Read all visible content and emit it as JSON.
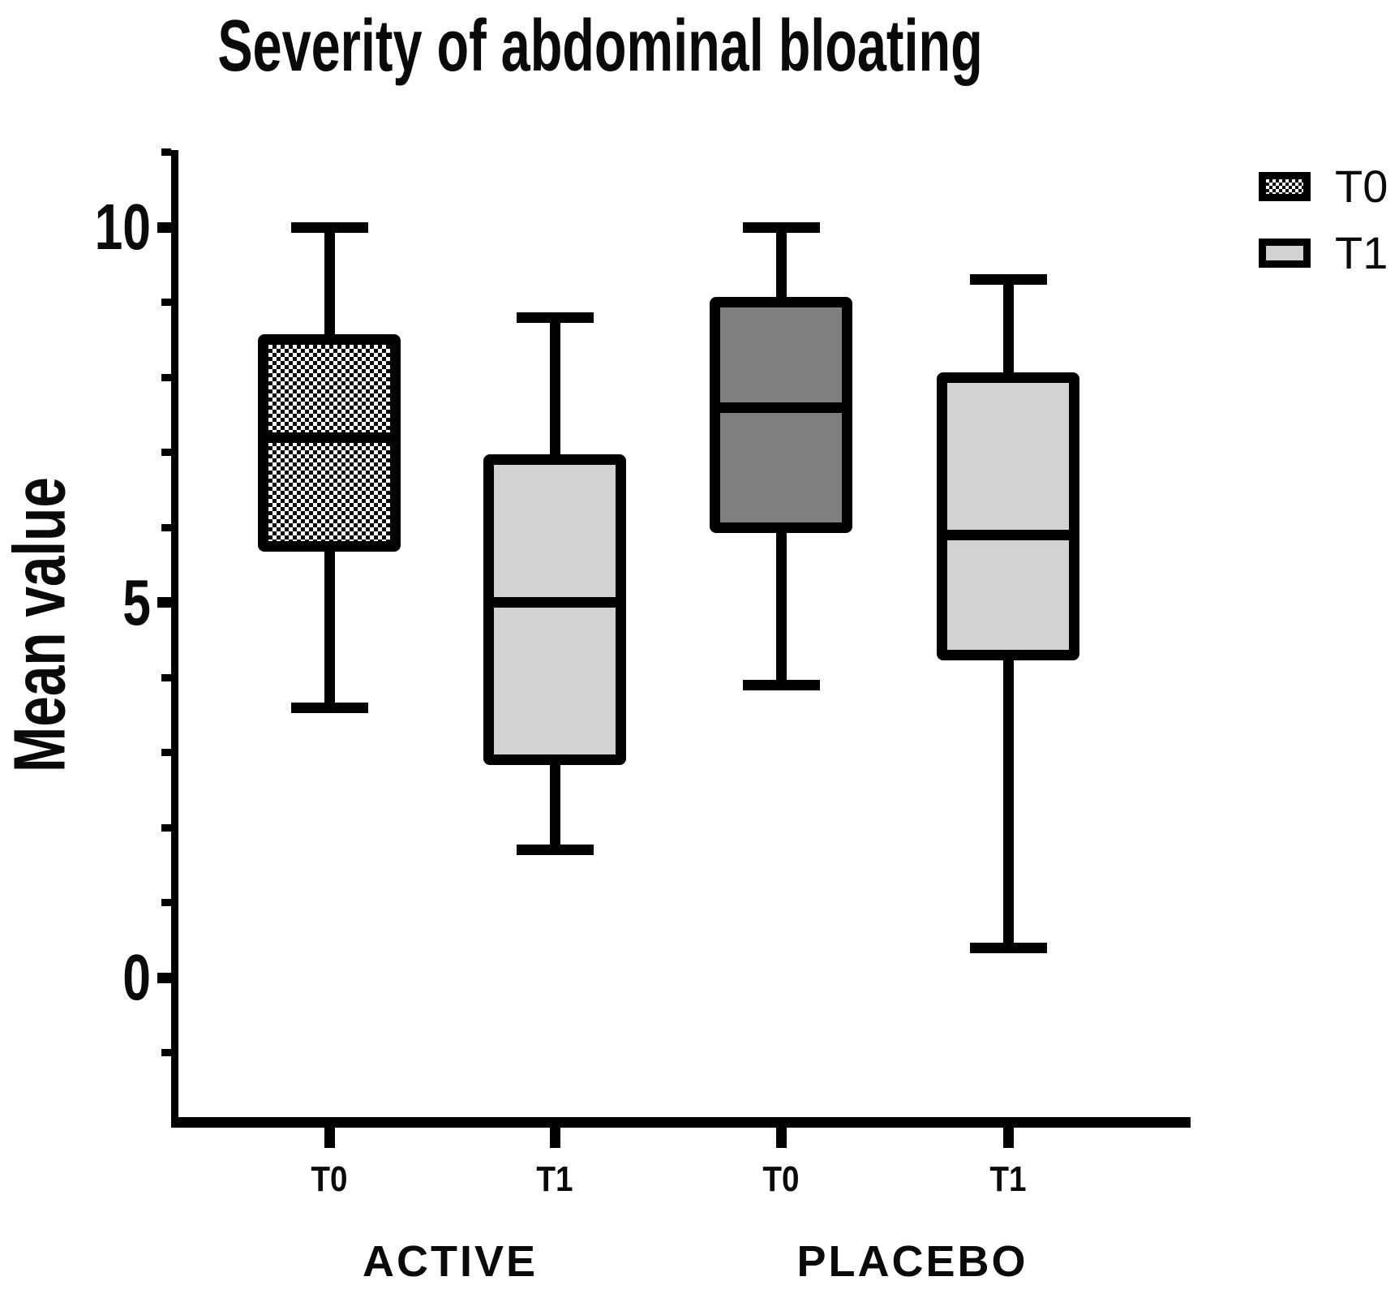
{
  "title": "Severity of abdominal bloating",
  "y_axis": {
    "label": "Mean value",
    "major_ticks": [
      {
        "value": 10,
        "label": "10"
      },
      {
        "value": 5,
        "label": "5"
      },
      {
        "value": 0,
        "label": "0"
      }
    ],
    "minor_tick_values": [
      11,
      9,
      8,
      7,
      6,
      4,
      3,
      2,
      1,
      -1
    ]
  },
  "x_axis": {
    "tick_labels": [
      "T0",
      "T1",
      "T0",
      "T1"
    ],
    "group_labels": [
      "ACTIVE",
      "PLACEBO"
    ]
  },
  "legend": {
    "items": [
      {
        "label": "T0",
        "fill": "crosshatch"
      },
      {
        "label": "T1",
        "fill": "lightgray"
      }
    ]
  },
  "colors": {
    "lightgray": "#d2d2d2",
    "darkgray": "#7f7f7f",
    "line": "#000000",
    "background": "#ffffff"
  },
  "chart_data": {
    "type": "box",
    "title": "Severity of abdominal bloating",
    "ylabel": "Mean value",
    "ylim": [
      -2,
      11
    ],
    "grid": false,
    "legend_position": "top-right",
    "groups": [
      "ACTIVE",
      "PLACEBO"
    ],
    "timepoints": [
      "T0",
      "T1"
    ],
    "boxes": [
      {
        "group": "ACTIVE",
        "timepoint": "T0",
        "min": 3.6,
        "q1": 5.75,
        "median": 7.2,
        "q3": 8.5,
        "max": 10.0,
        "fill": "crosshatch"
      },
      {
        "group": "ACTIVE",
        "timepoint": "T1",
        "min": 1.7,
        "q1": 2.9,
        "median": 5.0,
        "q3": 6.9,
        "max": 8.8,
        "fill": "lightgray"
      },
      {
        "group": "PLACEBO",
        "timepoint": "T0",
        "min": 3.9,
        "q1": 6.0,
        "median": 7.6,
        "q3": 9.0,
        "max": 10.0,
        "fill": "darkgray"
      },
      {
        "group": "PLACEBO",
        "timepoint": "T1",
        "min": 0.4,
        "q1": 4.3,
        "median": 5.9,
        "q3": 8.0,
        "max": 9.3,
        "fill": "lightgray"
      }
    ]
  }
}
